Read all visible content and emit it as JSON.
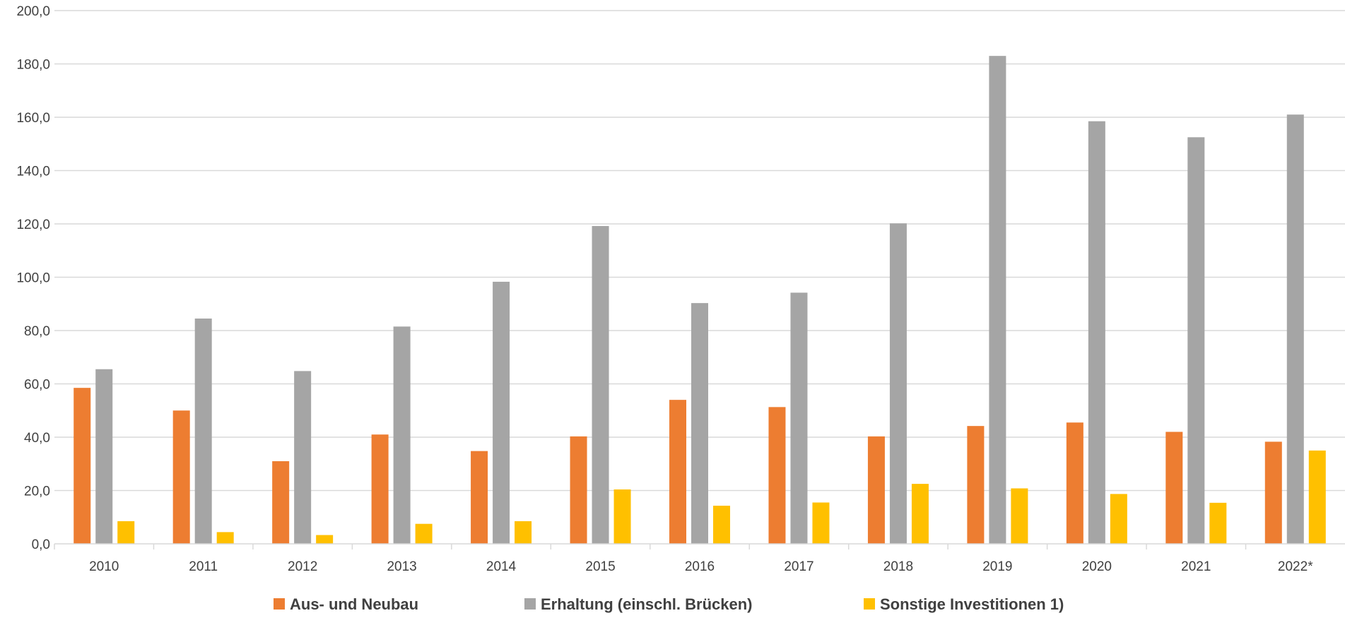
{
  "chart_data": {
    "type": "bar",
    "categories": [
      "2010",
      "2011",
      "2012",
      "2013",
      "2014",
      "2015",
      "2016",
      "2017",
      "2018",
      "2019",
      "2020",
      "2021",
      "2022*"
    ],
    "series": [
      {
        "name": "Aus- und Neubau",
        "color": "#ED7D31",
        "values": [
          58.5,
          50.0,
          31.0,
          41.0,
          34.8,
          40.3,
          54.0,
          51.3,
          40.3,
          44.2,
          45.5,
          42.0,
          38.3
        ]
      },
      {
        "name": "Erhaltung (einschl. Brücken)",
        "color": "#A5A5A5",
        "values": [
          65.5,
          84.5,
          64.8,
          81.5,
          98.3,
          119.2,
          90.3,
          94.2,
          120.2,
          183.0,
          158.5,
          152.5,
          161.0
        ]
      },
      {
        "name": "Sonstige Investitionen 1)",
        "color": "#FFC000",
        "values": [
          8.5,
          4.4,
          3.3,
          7.5,
          8.5,
          20.4,
          14.3,
          15.5,
          22.5,
          20.8,
          18.7,
          15.4,
          35.0
        ]
      }
    ],
    "ylim": [
      0,
      200
    ],
    "yticks": [
      0,
      20,
      40,
      60,
      80,
      100,
      120,
      140,
      160,
      180,
      200
    ],
    "ytick_labels": [
      "0,0",
      "20,0",
      "40,0",
      "60,0",
      "80,0",
      "100,0",
      "120,0",
      "140,0",
      "160,0",
      "180,0",
      "200,0"
    ],
    "grid": true,
    "legend_position": "bottom",
    "title": "",
    "xlabel": "",
    "ylabel": ""
  }
}
